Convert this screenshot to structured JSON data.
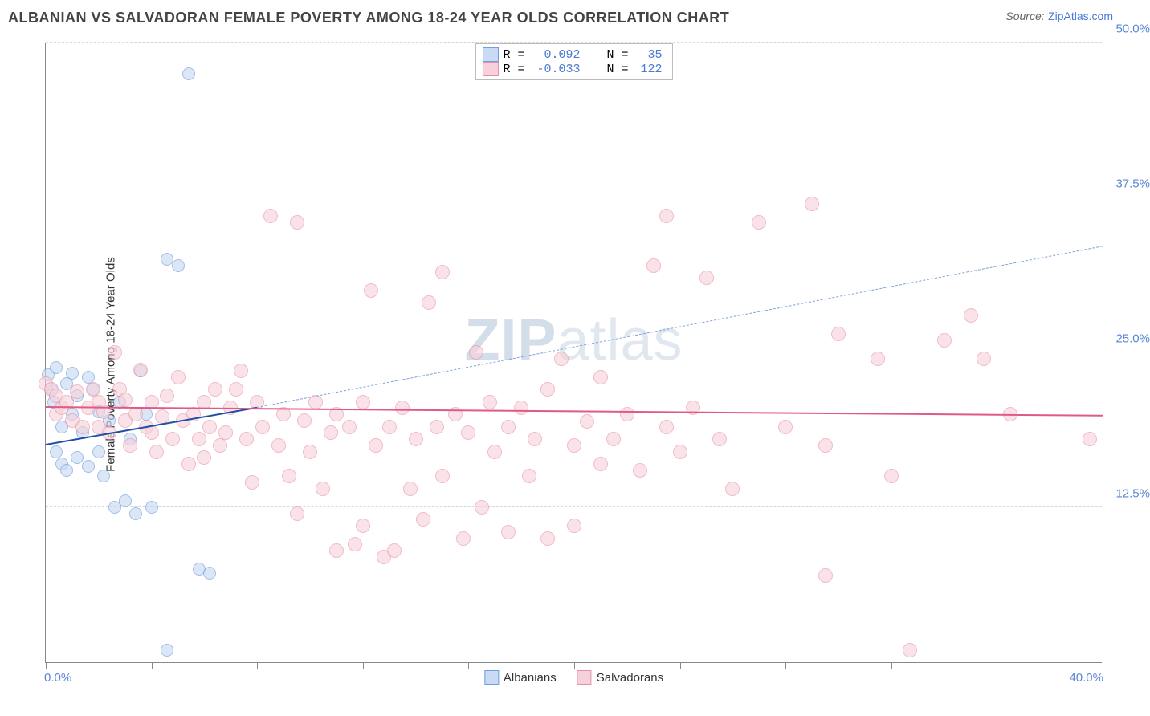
{
  "title": "ALBANIAN VS SALVADORAN FEMALE POVERTY AMONG 18-24 YEAR OLDS CORRELATION CHART",
  "source_label": "Source:",
  "source_name": "ZipAtlas.com",
  "ylabel": "Female Poverty Among 18-24 Year Olds",
  "watermark": {
    "bold": "ZIP",
    "rest": "atlas"
  },
  "chart": {
    "type": "scatter",
    "xlim": [
      0,
      40
    ],
    "ylim": [
      0,
      50
    ],
    "x_tick_step": 4,
    "y_ticks": [
      12.5,
      25.0,
      37.5,
      50.0
    ],
    "y_tick_labels": [
      "12.5%",
      "25.0%",
      "37.5%",
      "50.0%"
    ],
    "x_min_label": "0.0%",
    "x_max_label": "40.0%",
    "background_color": "#ffffff",
    "grid_color": "#d8d8d8",
    "axis_color": "#888888",
    "tick_label_color": "#5b87d6",
    "series": [
      {
        "name": "Albanians",
        "fill": "#c8daf4",
        "stroke": "#6f9de0",
        "fill_opacity": 0.65,
        "r": 8,
        "R_value": "0.092",
        "N_value": "35",
        "trend": {
          "x1": 0,
          "y1": 17.5,
          "x2": 8,
          "y2": 20.5,
          "dash": false,
          "color": "#1e4fa8",
          "width": 2.4
        },
        "trend_ext": {
          "x1": 8,
          "y1": 20.5,
          "x2": 40,
          "y2": 33.5,
          "dash": true,
          "color": "#7da0d8",
          "width": 1.6
        },
        "points": [
          [
            0.1,
            23.2
          ],
          [
            0.2,
            22.0
          ],
          [
            0.3,
            21.0
          ],
          [
            0.4,
            23.8
          ],
          [
            0.4,
            17.0
          ],
          [
            0.6,
            16.0
          ],
          [
            0.6,
            19.0
          ],
          [
            0.8,
            22.5
          ],
          [
            0.8,
            15.5
          ],
          [
            1.0,
            23.3
          ],
          [
            1.0,
            20.0
          ],
          [
            1.2,
            16.5
          ],
          [
            1.2,
            21.5
          ],
          [
            1.4,
            18.5
          ],
          [
            1.6,
            23.0
          ],
          [
            1.6,
            15.8
          ],
          [
            1.8,
            22.0
          ],
          [
            2.0,
            17.0
          ],
          [
            2.0,
            20.2
          ],
          [
            2.2,
            15.0
          ],
          [
            2.4,
            19.5
          ],
          [
            2.6,
            12.5
          ],
          [
            2.8,
            21.0
          ],
          [
            3.0,
            13.0
          ],
          [
            3.2,
            18.0
          ],
          [
            3.4,
            12.0
          ],
          [
            3.6,
            23.5
          ],
          [
            3.8,
            20.0
          ],
          [
            4.0,
            12.5
          ],
          [
            4.6,
            32.5
          ],
          [
            5.0,
            32.0
          ],
          [
            4.6,
            1.0
          ],
          [
            5.4,
            47.5
          ],
          [
            5.8,
            7.5
          ],
          [
            6.2,
            7.2
          ]
        ]
      },
      {
        "name": "Salvadorans",
        "fill": "#f7d1da",
        "stroke": "#e78fa5",
        "fill_opacity": 0.6,
        "r": 9,
        "R_value": "-0.033",
        "N_value": "122",
        "trend": {
          "x1": 0,
          "y1": 20.5,
          "x2": 40,
          "y2": 19.8,
          "dash": false,
          "color": "#e05a88",
          "width": 2.4
        },
        "points": [
          [
            0.0,
            22.5
          ],
          [
            0.2,
            22.0
          ],
          [
            0.4,
            21.5
          ],
          [
            0.4,
            20.0
          ],
          [
            0.6,
            20.5
          ],
          [
            0.8,
            21.0
          ],
          [
            1.0,
            19.5
          ],
          [
            1.2,
            21.8
          ],
          [
            1.4,
            19.0
          ],
          [
            1.6,
            20.5
          ],
          [
            1.8,
            22.0
          ],
          [
            2.0,
            19.0
          ],
          [
            2.0,
            21.0
          ],
          [
            2.2,
            20.2
          ],
          [
            2.4,
            18.5
          ],
          [
            2.6,
            25.0
          ],
          [
            2.8,
            22.0
          ],
          [
            3.0,
            19.5
          ],
          [
            3.0,
            21.2
          ],
          [
            3.2,
            17.5
          ],
          [
            3.4,
            20.0
          ],
          [
            3.6,
            23.6
          ],
          [
            3.8,
            19.0
          ],
          [
            4.0,
            21.0
          ],
          [
            4.0,
            18.5
          ],
          [
            4.2,
            17.0
          ],
          [
            4.4,
            19.8
          ],
          [
            4.6,
            21.5
          ],
          [
            4.8,
            18.0
          ],
          [
            5.0,
            23.0
          ],
          [
            5.2,
            19.5
          ],
          [
            5.4,
            16.0
          ],
          [
            5.6,
            20.0
          ],
          [
            5.8,
            18.0
          ],
          [
            6.0,
            21.0
          ],
          [
            6.0,
            16.5
          ],
          [
            6.2,
            19.0
          ],
          [
            6.4,
            22.0
          ],
          [
            6.6,
            17.5
          ],
          [
            6.8,
            18.5
          ],
          [
            7.0,
            20.5
          ],
          [
            7.2,
            22.0
          ],
          [
            7.4,
            23.5
          ],
          [
            7.6,
            18.0
          ],
          [
            7.8,
            14.5
          ],
          [
            8.0,
            21.0
          ],
          [
            8.2,
            19.0
          ],
          [
            8.5,
            36.0
          ],
          [
            8.8,
            17.5
          ],
          [
            9.0,
            20.0
          ],
          [
            9.2,
            15.0
          ],
          [
            9.5,
            35.5
          ],
          [
            9.5,
            12.0
          ],
          [
            9.8,
            19.5
          ],
          [
            10.0,
            17.0
          ],
          [
            10.2,
            21.0
          ],
          [
            10.5,
            14.0
          ],
          [
            10.8,
            18.5
          ],
          [
            11.0,
            20.0
          ],
          [
            11.0,
            9.0
          ],
          [
            11.5,
            19.0
          ],
          [
            11.7,
            9.5
          ],
          [
            12.0,
            21.0
          ],
          [
            12.0,
            11.0
          ],
          [
            12.3,
            30.0
          ],
          [
            12.5,
            17.5
          ],
          [
            12.8,
            8.5
          ],
          [
            13.0,
            19.0
          ],
          [
            13.2,
            9.0
          ],
          [
            13.5,
            20.5
          ],
          [
            13.8,
            14.0
          ],
          [
            14.0,
            18.0
          ],
          [
            14.3,
            11.5
          ],
          [
            14.5,
            29.0
          ],
          [
            14.8,
            19.0
          ],
          [
            15.0,
            31.5
          ],
          [
            15.0,
            15.0
          ],
          [
            15.5,
            20.0
          ],
          [
            15.8,
            10.0
          ],
          [
            16.0,
            18.5
          ],
          [
            16.3,
            25.0
          ],
          [
            16.5,
            12.5
          ],
          [
            16.8,
            21.0
          ],
          [
            17.0,
            17.0
          ],
          [
            17.5,
            19.0
          ],
          [
            17.5,
            10.5
          ],
          [
            18.0,
            20.5
          ],
          [
            18.3,
            15.0
          ],
          [
            18.5,
            18.0
          ],
          [
            19.0,
            10.0
          ],
          [
            19.0,
            22.0
          ],
          [
            19.5,
            24.5
          ],
          [
            20.0,
            17.5
          ],
          [
            20.0,
            11.0
          ],
          [
            20.5,
            19.4
          ],
          [
            21.0,
            16.0
          ],
          [
            21.0,
            23.0
          ],
          [
            21.5,
            18.0
          ],
          [
            22.0,
            20.0
          ],
          [
            22.5,
            15.5
          ],
          [
            23.0,
            32.0
          ],
          [
            23.5,
            36.0
          ],
          [
            23.5,
            19.0
          ],
          [
            24.0,
            17.0
          ],
          [
            24.5,
            20.5
          ],
          [
            25.0,
            31.0
          ],
          [
            25.5,
            18.0
          ],
          [
            26.0,
            14.0
          ],
          [
            27.0,
            35.5
          ],
          [
            28.0,
            19.0
          ],
          [
            29.0,
            37.0
          ],
          [
            29.5,
            17.5
          ],
          [
            29.5,
            7.0
          ],
          [
            30.0,
            26.5
          ],
          [
            31.5,
            24.5
          ],
          [
            32.0,
            15.0
          ],
          [
            32.7,
            1.0
          ],
          [
            34.0,
            26.0
          ],
          [
            35.0,
            28.0
          ],
          [
            35.5,
            24.5
          ],
          [
            36.5,
            20.0
          ],
          [
            39.5,
            18.0
          ]
        ]
      }
    ],
    "legend_bottom": [
      {
        "label": "Albanians",
        "fill": "#c8daf4",
        "stroke": "#6f9de0"
      },
      {
        "label": "Salvadorans",
        "fill": "#f7d1da",
        "stroke": "#e78fa5"
      }
    ],
    "legend_top_labels": {
      "R": "R =",
      "N": "N ="
    }
  }
}
